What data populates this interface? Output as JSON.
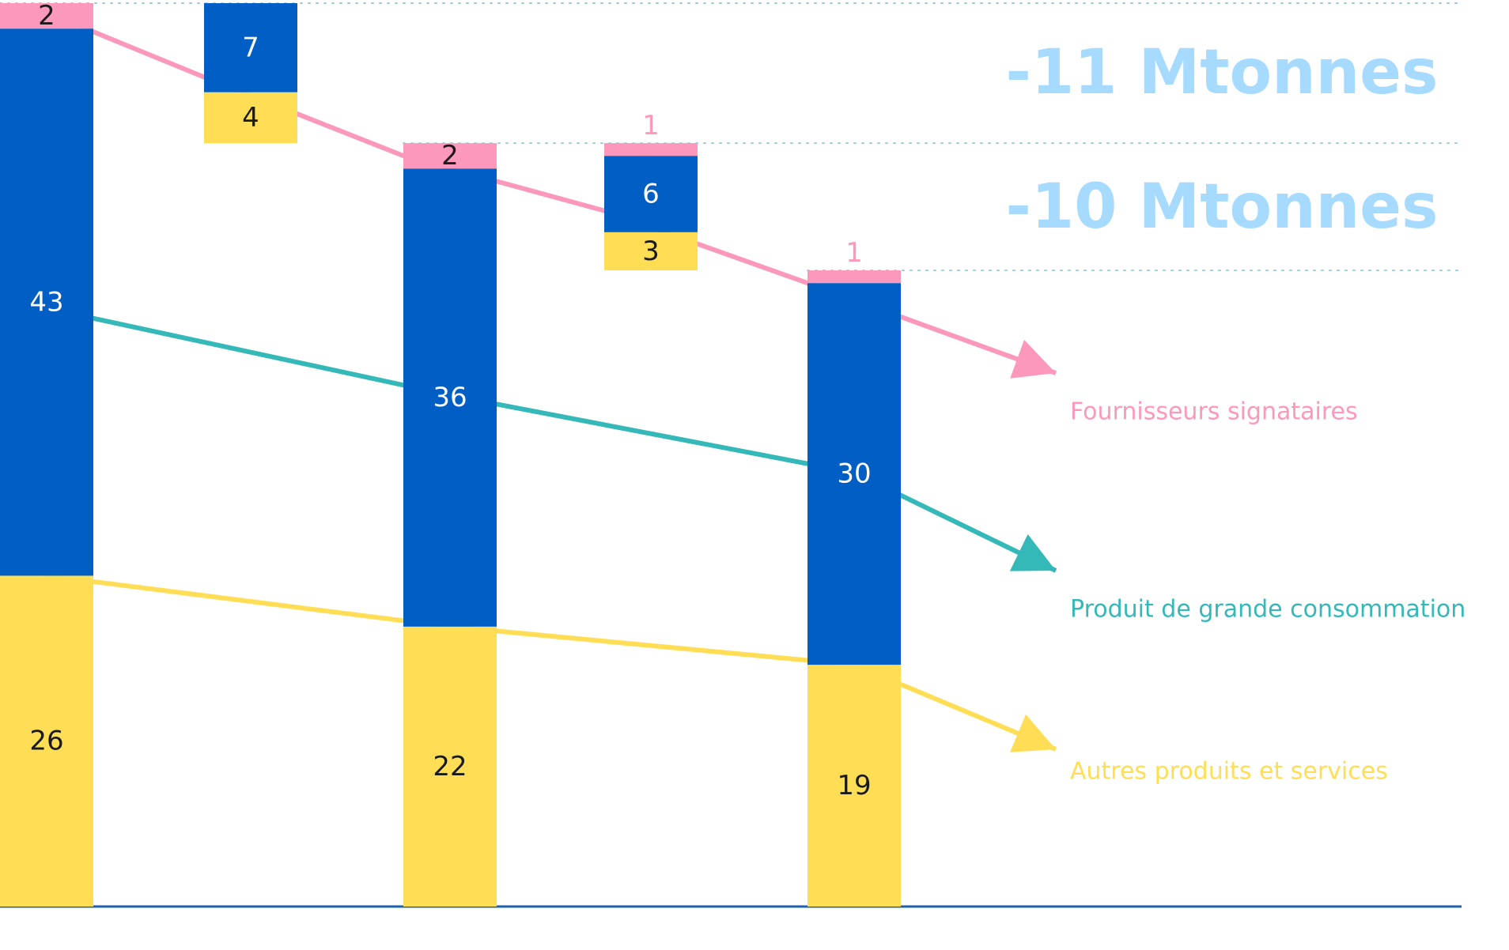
{
  "chart_data": {
    "type": "bar",
    "subtype": "stacked-waterfall",
    "title": "",
    "xlabel": "",
    "ylabel": "",
    "ylim": [
      0,
      71
    ],
    "grid": "dotted reference lines at bar tops",
    "legend_placement": "right (inline labels at arrow tips)",
    "series": [
      {
        "name": "Autres produits et services",
        "color": "#FFDE55"
      },
      {
        "name": "Produit de grande consommation",
        "color": "#005EC4"
      },
      {
        "name": "Fournisseurs signataires",
        "color": "#FC98BC"
      }
    ],
    "trend_colors": {
      "Fournisseurs signataires": "#FC98BC",
      "Produit de grande consommation": "#34B8B8",
      "Autres produits et services": "#FFDE55"
    },
    "bars": [
      {
        "kind": "total",
        "segments": [
          {
            "series": "Autres produits et services",
            "value": 26,
            "label": "26"
          },
          {
            "series": "Produit de grande consommation",
            "value": 43,
            "label": "43"
          },
          {
            "series": "Fournisseurs signataires",
            "value": 2,
            "label": "2"
          }
        ]
      },
      {
        "kind": "decrease",
        "segments": [
          {
            "series": "Autres produits et services",
            "value": 4,
            "label": "4"
          },
          {
            "series": "Produit de grande consommation",
            "value": 7,
            "label": "7"
          }
        ]
      },
      {
        "kind": "total",
        "segments": [
          {
            "series": "Autres produits et services",
            "value": 22,
            "label": "22"
          },
          {
            "series": "Produit de grande consommation",
            "value": 36,
            "label": "36"
          },
          {
            "series": "Fournisseurs signataires",
            "value": 2,
            "label": "2"
          }
        ]
      },
      {
        "kind": "decrease",
        "segments": [
          {
            "series": "Autres produits et services",
            "value": 3,
            "label": "3"
          },
          {
            "series": "Produit de grande consommation",
            "value": 6,
            "label": "6"
          },
          {
            "series": "Fournisseurs signataires",
            "value": 1,
            "label": "1"
          }
        ]
      },
      {
        "kind": "total",
        "segments": [
          {
            "series": "Autres produits et services",
            "value": 19,
            "label": "19"
          },
          {
            "series": "Produit de grande consommation",
            "value": 30,
            "label": "30"
          },
          {
            "series": "Fournisseurs signataires",
            "value": 1,
            "label": "1"
          }
        ]
      }
    ],
    "annotations": [
      "-11 Mtonnes",
      "-10 Mtonnes"
    ],
    "annotation_color": "#A6DBFF",
    "legend": [
      {
        "label": "Fournisseurs signataires",
        "color": "#FC98BC"
      },
      {
        "label": "Produit de grande consommation",
        "color": "#34B8B8"
      },
      {
        "label": "Autres produits et services",
        "color": "#FFDE55"
      }
    ]
  }
}
